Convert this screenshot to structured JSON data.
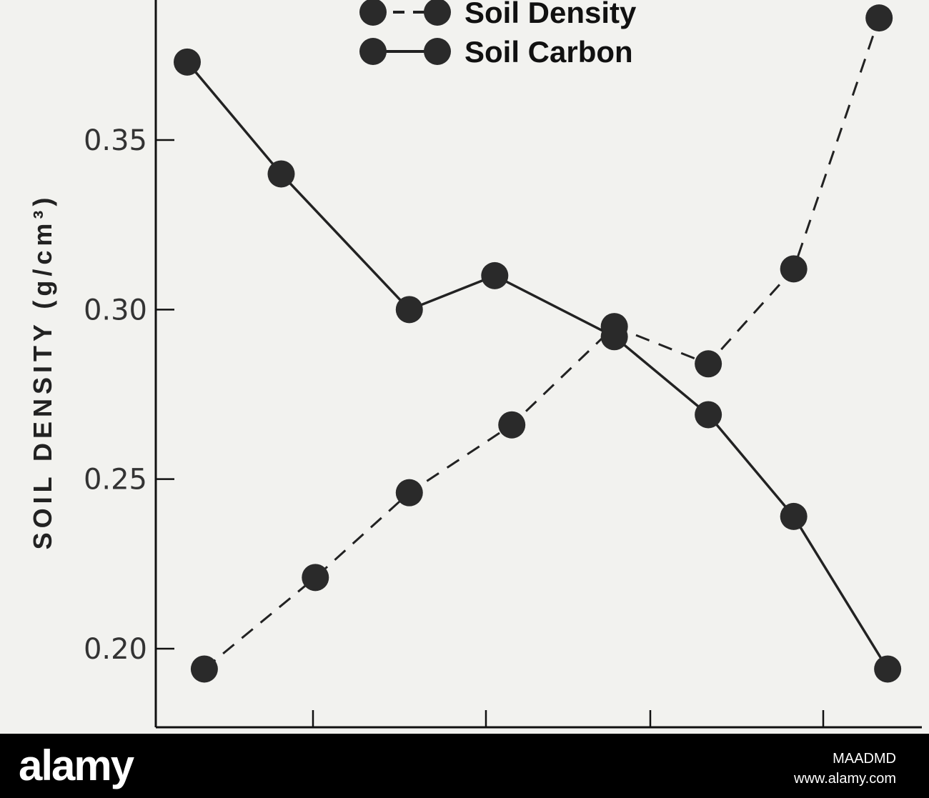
{
  "chart_data": {
    "type": "line",
    "ylabel": "SOIL DENSITY (g/cm³)",
    "y_ticks": [
      "0.35",
      "0.30",
      "0.25",
      "0.20"
    ],
    "y_tick_values": [
      0.35,
      0.3,
      0.25,
      0.2
    ],
    "ylim": [
      0.175,
      0.395
    ],
    "xlim": [
      0,
      8.5
    ],
    "legend_position": "top-center",
    "grid": false,
    "series": [
      {
        "name": "Soil Density",
        "style": "dashed",
        "x": [
          0.2,
          1.5,
          2.6,
          3.8,
          5.0,
          6.1,
          7.1,
          8.1
        ],
        "y": [
          0.194,
          0.221,
          0.246,
          0.266,
          0.295,
          0.284,
          0.312,
          0.386
        ]
      },
      {
        "name": "Soil Carbon",
        "style": "solid",
        "x": [
          0.0,
          1.1,
          2.6,
          3.6,
          5.0,
          6.1,
          7.1,
          8.2
        ],
        "y": [
          0.373,
          0.34,
          0.3,
          0.31,
          0.292,
          0.269,
          0.239,
          0.194
        ]
      }
    ],
    "colors": {
      "line": "#222222",
      "marker": "#2a2a2a",
      "axis": "#111111"
    }
  },
  "footer": {
    "logo": "alamy",
    "image_id": "MAADMD",
    "url": "www.alamy.com"
  }
}
